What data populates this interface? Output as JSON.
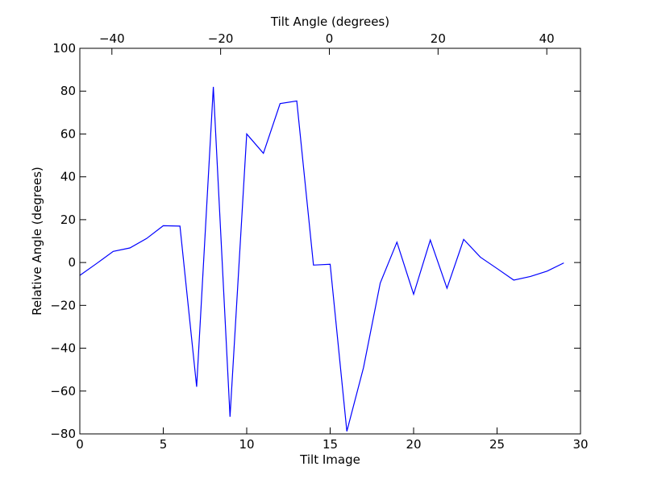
{
  "chart_data": {
    "type": "line",
    "xlabel": "Tilt Image",
    "ylabel": "Relative Angle (degrees)",
    "top_xlabel": "Tilt Angle (degrees)",
    "xlim": [
      0,
      30
    ],
    "ylim": [
      -80,
      100
    ],
    "x_ticks": [
      0,
      5,
      10,
      15,
      20,
      25,
      30
    ],
    "y_ticks": [
      -80,
      -60,
      -40,
      -20,
      0,
      20,
      40,
      60,
      80,
      100
    ],
    "x_tick_labels": [
      "0",
      "5",
      "10",
      "15",
      "20",
      "25",
      "30"
    ],
    "y_tick_labels": [
      "−80",
      "−60",
      "−40",
      "−20",
      "0",
      "20",
      "40",
      "60",
      "80",
      "100"
    ],
    "top_xlim": [
      -45.9,
      46.2
    ],
    "top_ticks": [
      -40,
      -20,
      0,
      20,
      40
    ],
    "top_tick_labels": [
      "−40",
      "−20",
      "0",
      "20",
      "40"
    ],
    "grid": false,
    "series": [
      {
        "color": "#0000ff",
        "x": [
          0,
          1,
          2,
          3,
          4,
          5,
          6,
          7,
          8,
          9,
          10,
          11,
          12,
          13,
          14,
          15,
          16,
          17,
          18,
          19,
          20,
          21,
          22,
          23,
          24,
          25,
          26,
          27,
          28,
          29
        ],
        "y": [
          -6,
          -0.5,
          5.2,
          6.8,
          11.2,
          17.2,
          17,
          -58,
          82,
          -72,
          60,
          51,
          74.2,
          75.4,
          -1.2,
          -0.8,
          -78.8,
          -49,
          -9.6,
          9.5,
          -14.8,
          10.5,
          -12,
          10.8,
          2.5,
          -2.8,
          -8.2,
          -6.5,
          -4,
          -0.2
        ]
      }
    ]
  }
}
